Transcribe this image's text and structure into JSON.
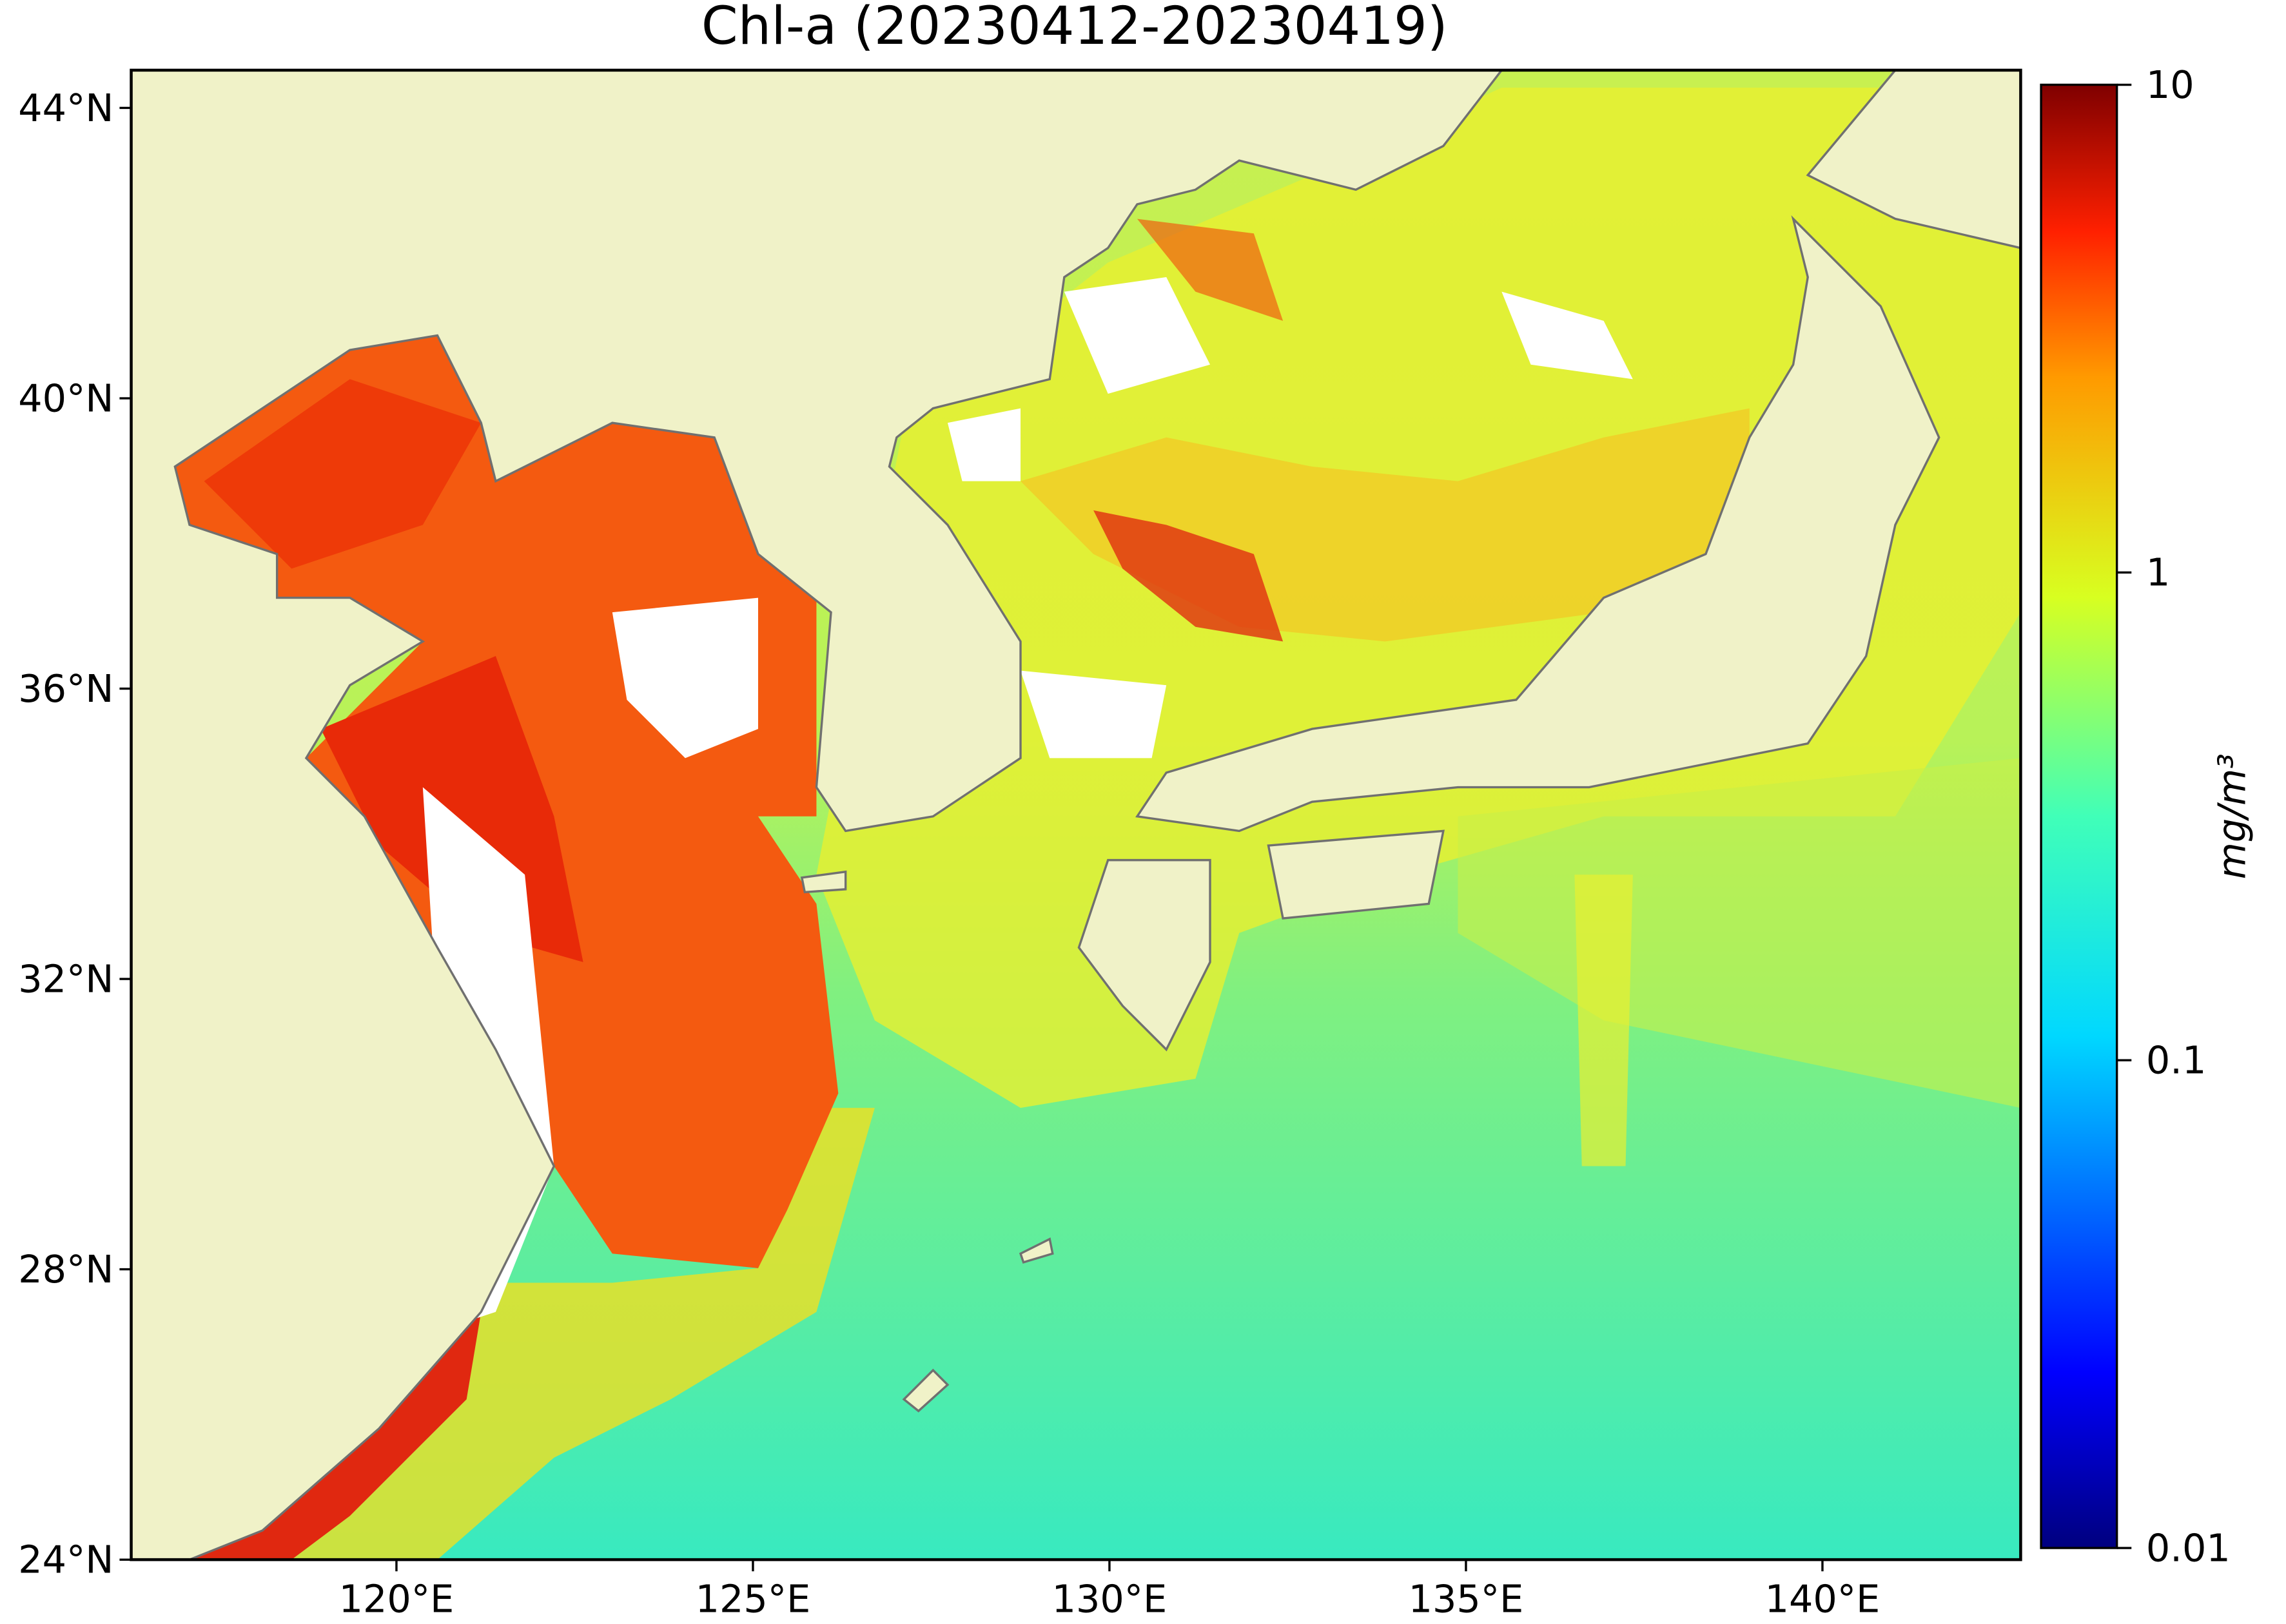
{
  "chart_data": {
    "type": "map",
    "title": "Chl-a (20230412-20230419)",
    "xlim": [
      116.28,
      142.78
    ],
    "ylim": [
      24,
      44.52
    ],
    "xticks": [
      {
        "value": 120,
        "label": "120°E"
      },
      {
        "value": 125,
        "label": "125°E"
      },
      {
        "value": 130,
        "label": "130°E"
      },
      {
        "value": 135,
        "label": "135°E"
      },
      {
        "value": 140,
        "label": "140°E"
      }
    ],
    "yticks": [
      {
        "value": 24,
        "label": "24°N"
      },
      {
        "value": 28,
        "label": "28°N"
      },
      {
        "value": 32,
        "label": "32°N"
      },
      {
        "value": 36,
        "label": "36°N"
      },
      {
        "value": 40,
        "label": "40°N"
      },
      {
        "value": 44,
        "label": "44°N"
      }
    ],
    "colorbar": {
      "label": "mg/m³",
      "clim": [
        0.01,
        10
      ],
      "ticks": [
        0.01,
        0.1,
        1,
        10
      ],
      "log_scale": true,
      "colormap": "jet"
    }
  }
}
